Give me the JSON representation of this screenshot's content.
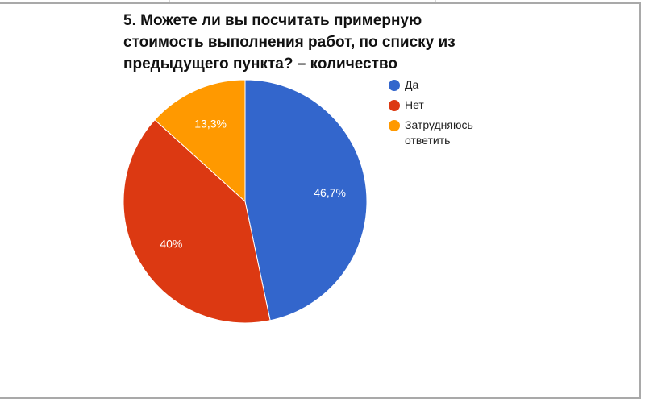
{
  "title_lines": [
    "5. Можете ли вы посчитать примерную",
    "стоимость выполнения работ, по списку из",
    "предыдущего пункта? – количество"
  ],
  "legend": [
    {
      "label": "Да",
      "color": "#3366CC"
    },
    {
      "label": "Нет",
      "color": "#DC3912"
    },
    {
      "label": "Затрудняюсь ответить",
      "color": "#FF9900"
    }
  ],
  "slice_labels": [
    "46,7%",
    "40%",
    "13,3%"
  ],
  "chart_data": {
    "type": "pie",
    "title": "5. Можете ли вы посчитать примерную стоимость выполнения работ, по списку из предыдущего пункта? – количество",
    "categories": [
      "Да",
      "Нет",
      "Затрудняюсь ответить"
    ],
    "values": [
      46.7,
      40.0,
      13.3
    ],
    "value_labels": [
      "46,7%",
      "40%",
      "13,3%"
    ],
    "colors": [
      "#3366CC",
      "#DC3912",
      "#FF9900"
    ],
    "legend_position": "right",
    "start_angle_deg": 0,
    "direction": "clockwise"
  }
}
